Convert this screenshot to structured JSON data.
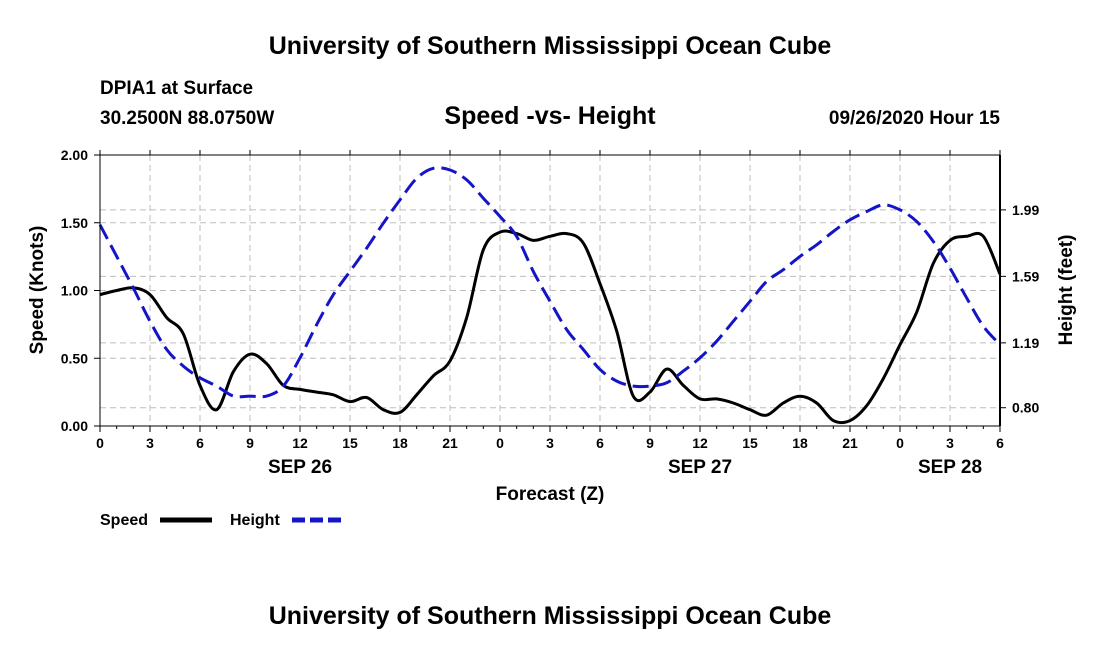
{
  "header": {
    "title": "University of Southern Mississippi Ocean Cube",
    "station": "DPIA1 at Surface",
    "coords": "30.2500N 88.0750W",
    "subtitle": "Speed -vs- Height",
    "datetime": "09/26/2020 Hour 15"
  },
  "footer": {
    "title": "University of Southern Mississippi Ocean Cube"
  },
  "legend": {
    "speed_label": "Speed",
    "height_label": "Height"
  },
  "colors": {
    "speed": "#000000",
    "height": "#1515c8",
    "grid": "#bdbdbd"
  },
  "chart_data": {
    "type": "line",
    "title": "Speed -vs- Height",
    "xlabel": "Forecast (Z)",
    "ylabel": "Speed (Knots)",
    "y2label": "Height (feet)",
    "xlim": [
      0,
      54
    ],
    "ylim": [
      0,
      2
    ],
    "y2lim": [
      0.69,
      2.32
    ],
    "x_tick_values": [
      0,
      3,
      6,
      9,
      12,
      15,
      18,
      21,
      24,
      27,
      30,
      33,
      36,
      39,
      42,
      45,
      48,
      51,
      54
    ],
    "x_tick_labels": [
      "0",
      "3",
      "6",
      "9",
      "12",
      "15",
      "18",
      "21",
      "0",
      "3",
      "6",
      "9",
      "12",
      "15",
      "18",
      "21",
      "0",
      "3",
      "6"
    ],
    "y_ticks": [
      "0.00",
      "0.50",
      "1.00",
      "1.50",
      "2.00"
    ],
    "y_tick_values": [
      0,
      0.5,
      1,
      1.5,
      2
    ],
    "y2_ticks": [
      "0.80",
      "1.19",
      "1.59",
      "1.99"
    ],
    "y2_tick_values": [
      0.8,
      1.19,
      1.59,
      1.99
    ],
    "date_labels": [
      {
        "label": "SEP 26",
        "x": 12
      },
      {
        "label": "SEP 27",
        "x": 36
      },
      {
        "label": "SEP 28",
        "x": 51
      }
    ],
    "grid": true,
    "series": [
      {
        "name": "Speed",
        "axis": "left",
        "style": "solid",
        "x": [
          0,
          1,
          2,
          3,
          4,
          5,
          6,
          7,
          8,
          9,
          10,
          11,
          12,
          13,
          14,
          15,
          16,
          17,
          18,
          19,
          20,
          21,
          22,
          23,
          24,
          25,
          26,
          27,
          28,
          29,
          30,
          31,
          32,
          33,
          34,
          35,
          36,
          37,
          38,
          39,
          40,
          41,
          42,
          43,
          44,
          45,
          46,
          47,
          48,
          49,
          50,
          51,
          52,
          53,
          54
        ],
        "values": [
          0.97,
          1.0,
          1.02,
          0.97,
          0.8,
          0.68,
          0.3,
          0.12,
          0.4,
          0.53,
          0.46,
          0.3,
          0.27,
          0.25,
          0.23,
          0.18,
          0.21,
          0.12,
          0.1,
          0.23,
          0.37,
          0.48,
          0.8,
          1.3,
          1.43,
          1.42,
          1.37,
          1.4,
          1.42,
          1.35,
          1.05,
          0.7,
          0.22,
          0.25,
          0.42,
          0.3,
          0.2,
          0.2,
          0.17,
          0.12,
          0.08,
          0.17,
          0.22,
          0.17,
          0.04,
          0.04,
          0.15,
          0.35,
          0.6,
          0.84,
          1.2,
          1.37,
          1.4,
          1.4,
          1.12
        ]
      },
      {
        "name": "Height",
        "axis": "right",
        "style": "dashed",
        "x": [
          0,
          1,
          2,
          3,
          4,
          5,
          6,
          7,
          8,
          9,
          10,
          11,
          12,
          13,
          14,
          15,
          16,
          17,
          18,
          19,
          20,
          21,
          22,
          23,
          24,
          25,
          26,
          27,
          28,
          29,
          30,
          31,
          32,
          33,
          34,
          35,
          36,
          37,
          38,
          39,
          40,
          41,
          42,
          43,
          44,
          45,
          46,
          47,
          48,
          49,
          50,
          51,
          52,
          53,
          54
        ],
        "values": [
          1.9,
          1.71,
          1.52,
          1.32,
          1.15,
          1.05,
          0.98,
          0.93,
          0.87,
          0.87,
          0.87,
          0.93,
          1.1,
          1.3,
          1.48,
          1.62,
          1.76,
          1.91,
          2.05,
          2.18,
          2.24,
          2.23,
          2.17,
          2.06,
          1.95,
          1.83,
          1.62,
          1.44,
          1.27,
          1.15,
          1.03,
          0.96,
          0.93,
          0.93,
          0.95,
          1.02,
          1.1,
          1.2,
          1.32,
          1.44,
          1.56,
          1.63,
          1.71,
          1.78,
          1.86,
          1.93,
          1.98,
          2.02,
          1.99,
          1.92,
          1.8,
          1.64,
          1.46,
          1.29,
          1.18
        ]
      }
    ]
  }
}
